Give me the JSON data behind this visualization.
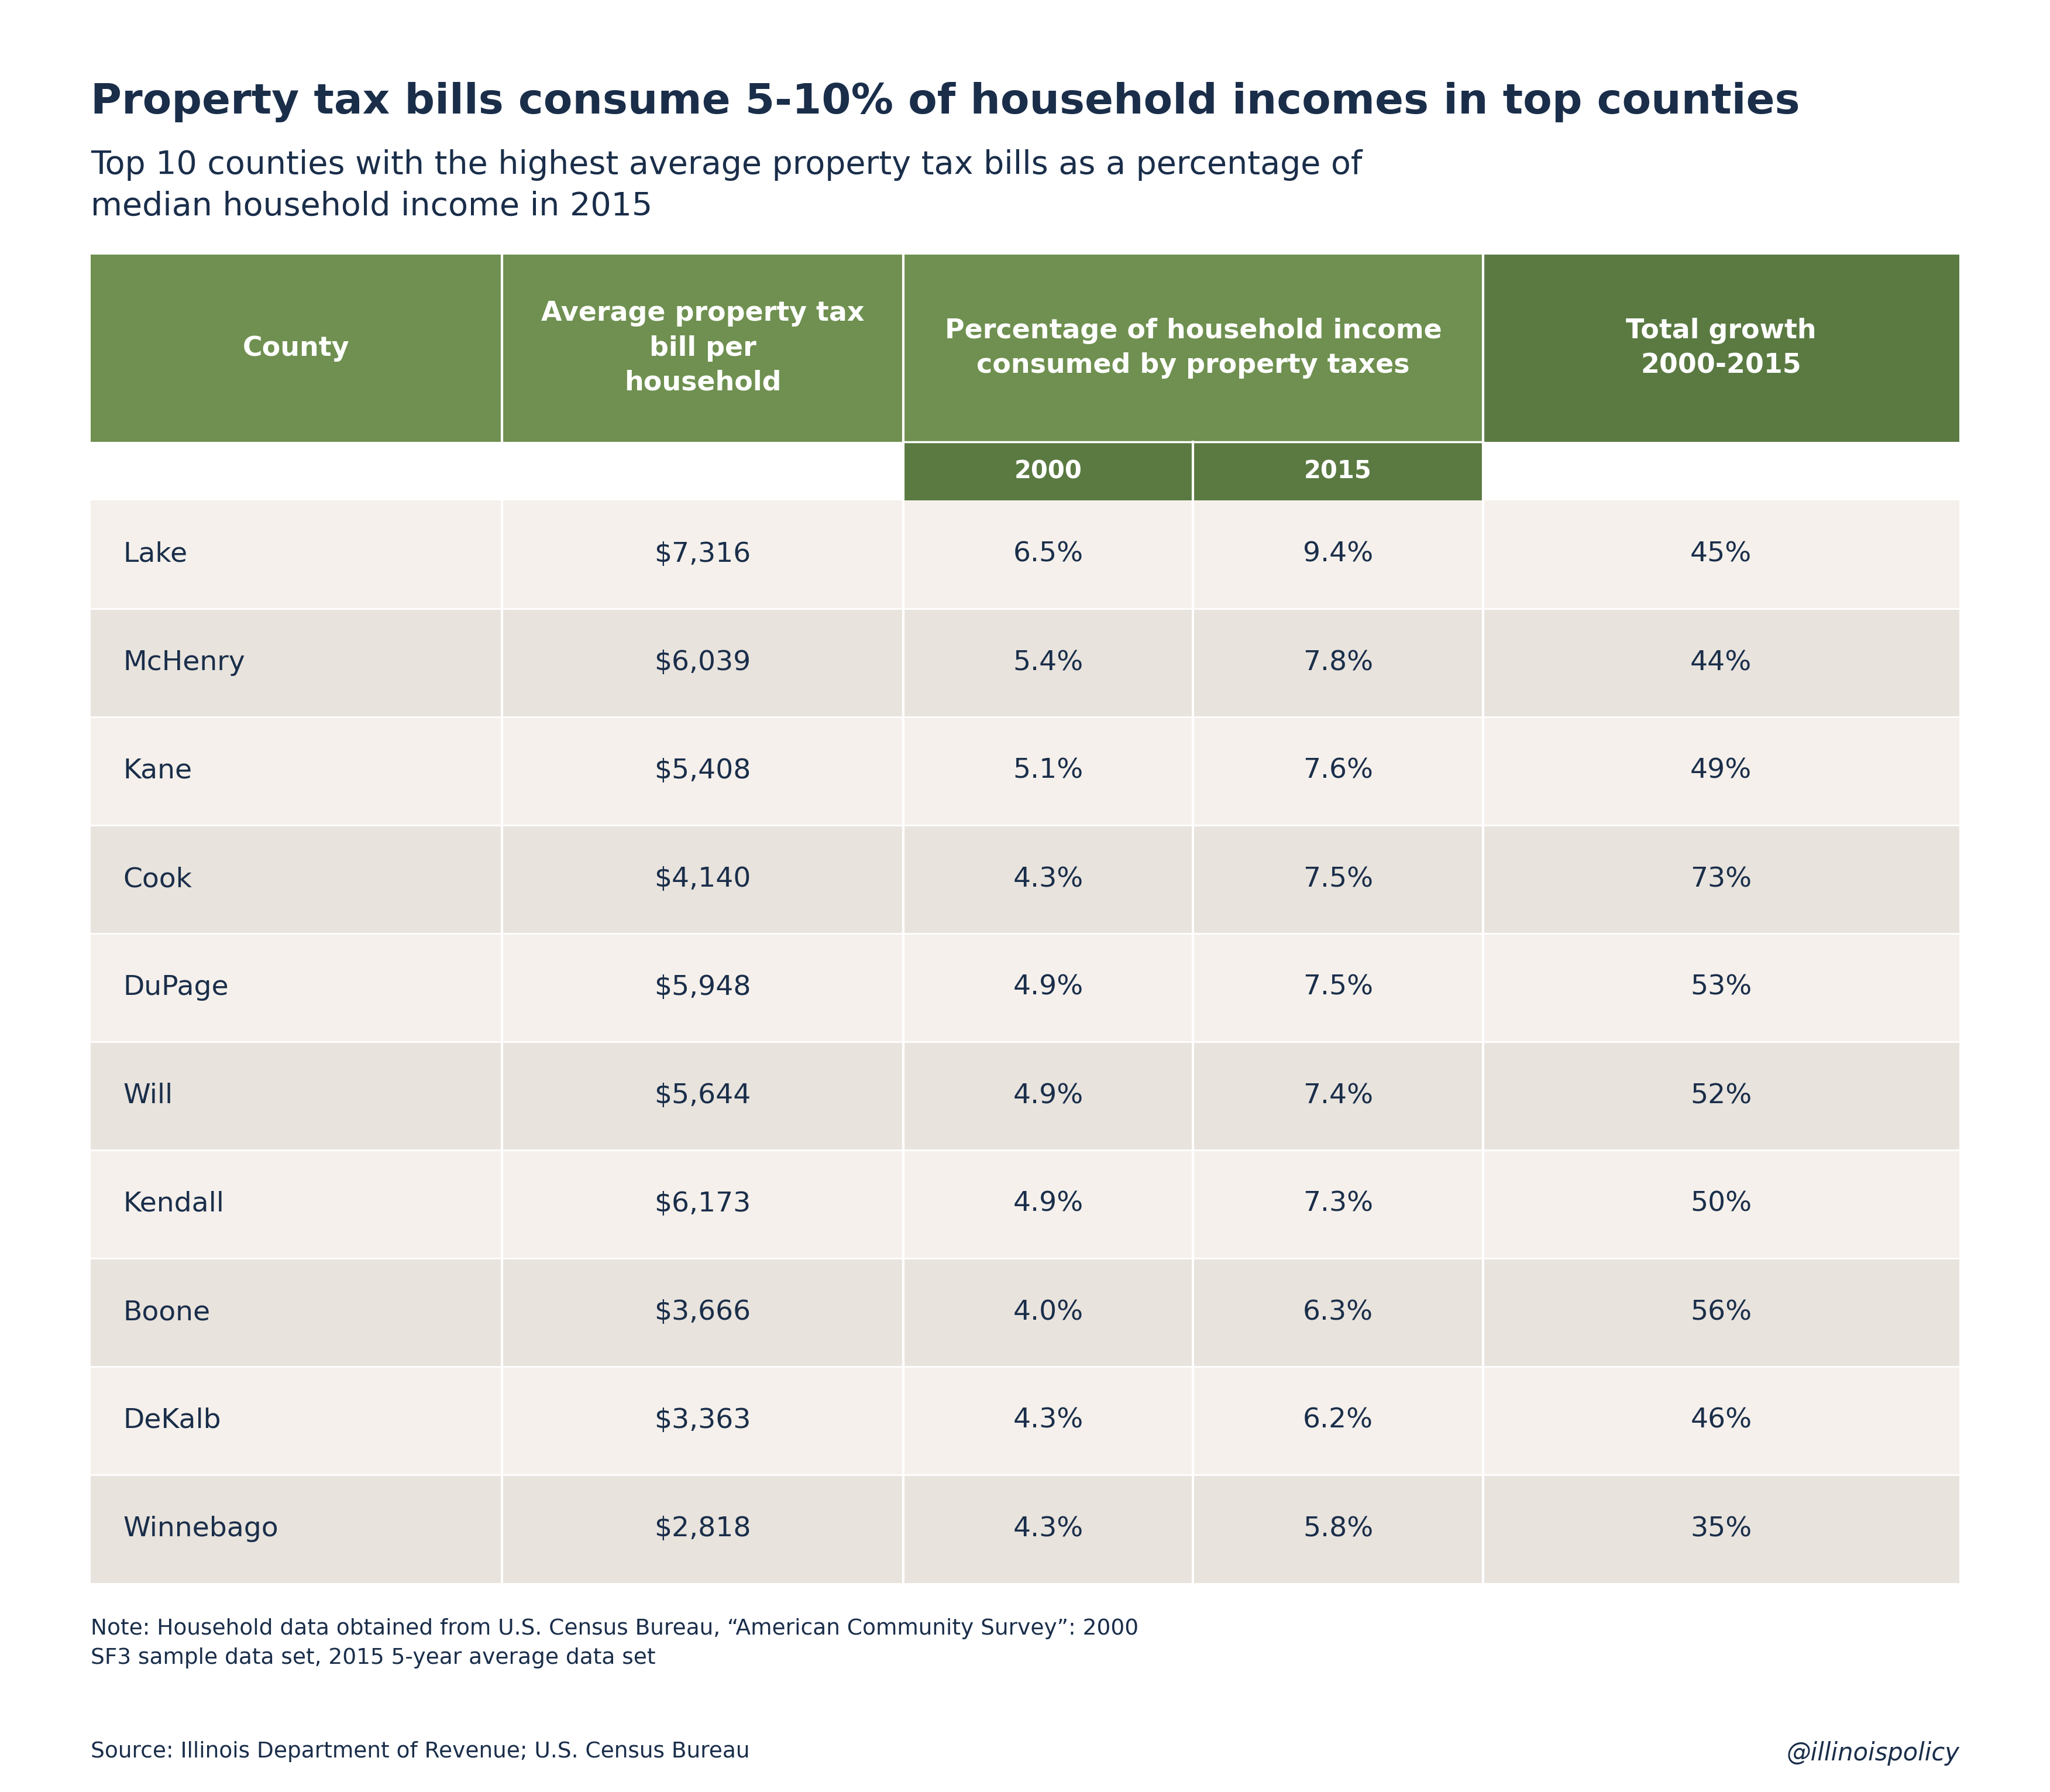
{
  "title": "Property tax bills consume 5-10% of household incomes in top counties",
  "subtitle": "Top 10 counties with the highest average property tax bills as a percentage of\nmedian household income in 2015",
  "counties": [
    "Lake",
    "McHenry",
    "Kane",
    "Cook",
    "DuPage",
    "Will",
    "Kendall",
    "Boone",
    "DeKalb",
    "Winnebago"
  ],
  "avg_tax": [
    "$7,316",
    "$6,039",
    "$5,408",
    "$4,140",
    "$5,948",
    "$5,644",
    "$6,173",
    "$3,666",
    "$3,363",
    "$2,818"
  ],
  "pct_2000": [
    "6.5%",
    "5.4%",
    "5.1%",
    "4.3%",
    "4.9%",
    "4.9%",
    "4.9%",
    "4.0%",
    "4.3%",
    "4.3%"
  ],
  "pct_2015": [
    "9.4%",
    "7.8%",
    "7.6%",
    "7.5%",
    "7.5%",
    "7.4%",
    "7.3%",
    "6.3%",
    "6.2%",
    "5.8%"
  ],
  "total_growth": [
    "45%",
    "44%",
    "49%",
    "73%",
    "53%",
    "52%",
    "50%",
    "56%",
    "46%",
    "35%"
  ],
  "header_bg_light": "#6f9050",
  "header_bg_dark": "#5a7a42",
  "row_bg_odd": "#f5f0eb",
  "row_bg_even": "#e8e3dd",
  "text_dark": "#1a2e4a",
  "text_white": "#ffffff",
  "note": "Note: Household data obtained from U.S. Census Bureau, “American Community Survey”: 2000\nSF3 sample data set, 2015 5-year average data set",
  "source": "Source: Illinois Department of Revenue; U.S. Census Bureau",
  "watermark": "@illinoispolicy",
  "bg_color": "#ffffff",
  "title_fontsize": 52,
  "subtitle_fontsize": 40,
  "header_fontsize": 33,
  "subheader_fontsize": 30,
  "row_fontsize": 34,
  "note_fontsize": 27,
  "source_fontsize": 27,
  "watermark_fontsize": 30
}
